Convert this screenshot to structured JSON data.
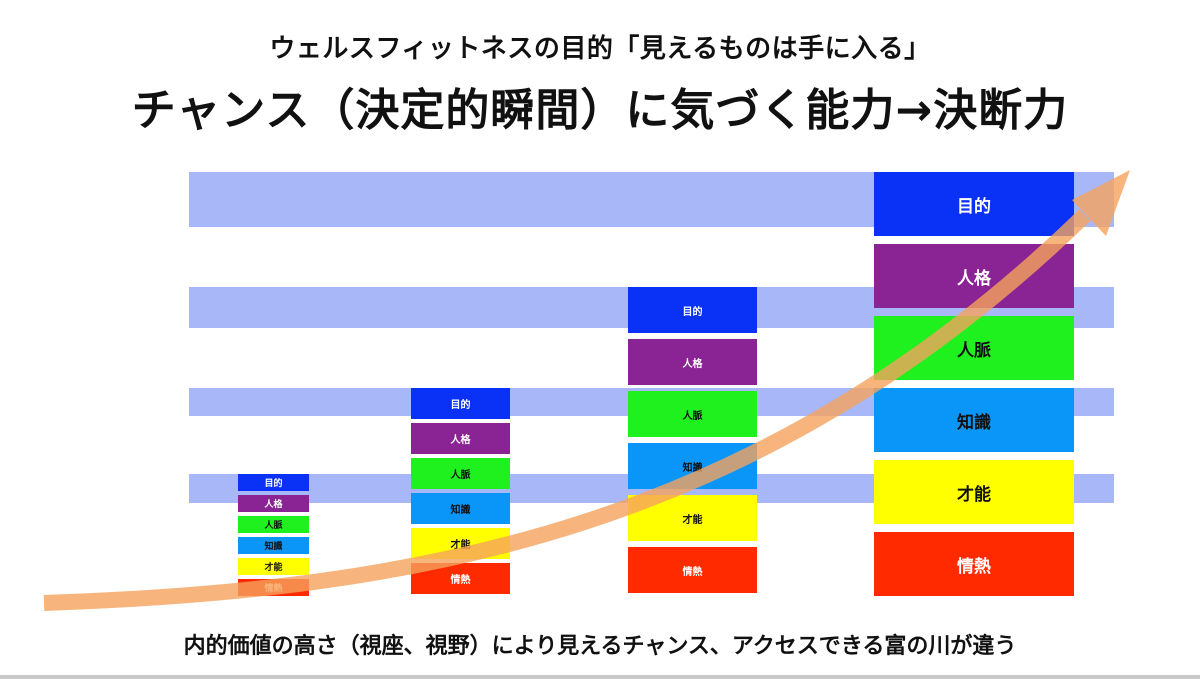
{
  "header": {
    "subtitle": "ウェルスフィットネスの目的「見えるものは手に入る」",
    "title": "チャンス（決定的瞬間）に気づく能力→決断力"
  },
  "footer": {
    "caption": "内的価値の高さ（視座、視野）により見えるチャンス、アクセスできる富の川が違う"
  },
  "levels": [
    {
      "name": "目的",
      "color": "#0a32f6"
    },
    {
      "name": "人格",
      "color": "#8a2393"
    },
    {
      "name": "人脈",
      "color": "#1ef11e"
    },
    {
      "name": "知識",
      "color": "#0a96f8"
    },
    {
      "name": "才能",
      "color": "#ffff00"
    },
    {
      "name": "情熱",
      "color": "#ff2a00"
    }
  ],
  "stacks": [
    {
      "labels": [
        "目的",
        "人格",
        "人脈",
        "知識",
        "才能",
        "情熱"
      ]
    },
    {
      "labels": [
        "目的",
        "人格",
        "人脈",
        "知識",
        "才能",
        "情熱"
      ]
    },
    {
      "labels": [
        "目的",
        "人格",
        "人脈",
        "知識",
        "才能",
        "情熱"
      ]
    },
    {
      "labels": [
        "目的",
        "人格",
        "人脈",
        "知識",
        "才能",
        "情熱"
      ]
    }
  ],
  "colors": {
    "band": "#a8b7f8",
    "arrow": "#f5a35c"
  }
}
